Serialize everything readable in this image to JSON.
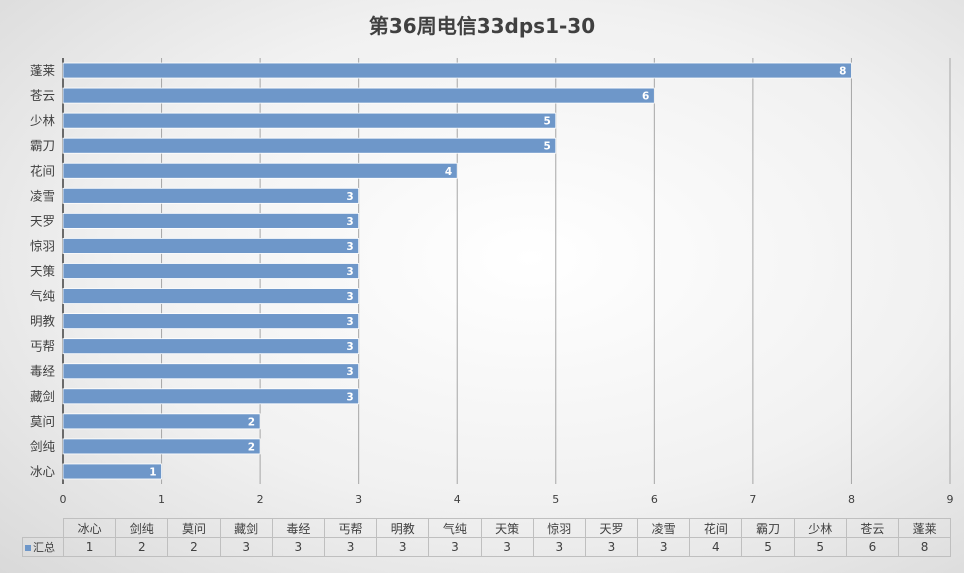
{
  "chart_data": {
    "type": "bar",
    "orientation": "horizontal",
    "title": "第36周电信33dps1-30",
    "categories": [
      "冰心",
      "剑纯",
      "莫问",
      "藏剑",
      "毒经",
      "丐帮",
      "明教",
      "气纯",
      "天策",
      "惊羽",
      "天罗",
      "凌雪",
      "花间",
      "霸刀",
      "少林",
      "苍云",
      "蓬莱"
    ],
    "series": [
      {
        "name": "汇总",
        "values": [
          1,
          2,
          2,
          3,
          3,
          3,
          3,
          3,
          3,
          3,
          3,
          3,
          4,
          5,
          5,
          6,
          8
        ]
      }
    ],
    "xlim": [
      0,
      9
    ],
    "xticks": [
      0,
      1,
      2,
      3,
      4,
      5,
      6,
      7,
      8,
      9
    ],
    "grid": "vertical",
    "data_labels": true,
    "data_table": true,
    "colors": {
      "bar": "#6e97c9",
      "bar_edge": "#ffffff",
      "grid": "#a6a6a6",
      "label": "#ffffff",
      "text": "#404040"
    }
  }
}
